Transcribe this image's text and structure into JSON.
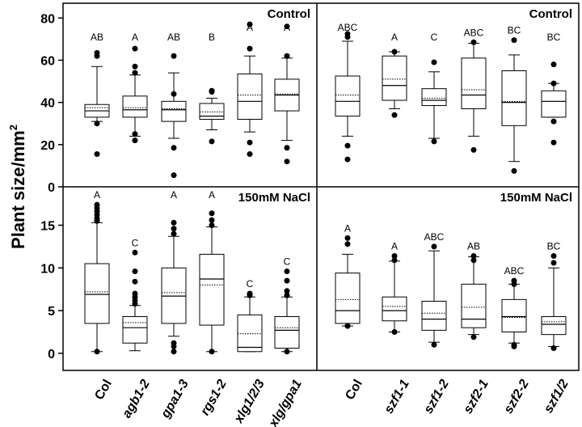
{
  "chart_data": {
    "type": "boxplot",
    "ylabel": "Plant size/mm",
    "ylabel_superscript": "2",
    "panels": [
      {
        "id": "tl",
        "title": "Control",
        "ylim": [
          0,
          87
        ],
        "yticks": [
          "0",
          "20",
          "40",
          "60",
          "80"
        ],
        "categories": [
          "Col",
          "agb1-2",
          "gpa1-3",
          "rgs1-2",
          "xlg1/2/3",
          "xlg/gpa1"
        ],
        "italic": [
          false,
          true,
          true,
          true,
          true,
          true
        ],
        "boxes": [
          {
            "name": "Col",
            "whisker_low": 31,
            "q1": 33,
            "median": 36,
            "mean": 37.5,
            "q3": 39,
            "whisker_high": 57,
            "outliers": [
              15.5,
              30,
              62,
              63.5
            ],
            "sig": "AB"
          },
          {
            "name": "agb1-2",
            "whisker_low": 24,
            "q1": 33,
            "median": 36.5,
            "mean": 37.5,
            "q3": 43,
            "whisker_high": 53,
            "outliers": [
              22,
              25,
              54,
              57,
              65.5
            ],
            "sig": "A"
          },
          {
            "name": "gpa1-3",
            "whisker_low": 23,
            "q1": 31,
            "median": 36.5,
            "mean": 37,
            "q3": 40.5,
            "whisker_high": 54,
            "outliers": [
              5.5,
              18.5,
              44,
              62
            ],
            "sig": "AB"
          },
          {
            "name": "rgs1-2",
            "whisker_low": 27,
            "q1": 32,
            "median": 33.5,
            "mean": 35.5,
            "q3": 39.5,
            "whisker_high": 42,
            "outliers": [
              21.5,
              45,
              45.5
            ],
            "sig": "B"
          },
          {
            "name": "xlg1/2/3",
            "whisker_low": 26,
            "q1": 32,
            "median": 40.5,
            "mean": 43.5,
            "q3": 53.5,
            "whisker_high": 62,
            "outliers": [
              15.5,
              21,
              65.5,
              77
            ],
            "sig": "A"
          },
          {
            "name": "xlg/gpa1",
            "whisker_low": 22,
            "q1": 36,
            "median": 43.5,
            "mean": 44,
            "q3": 51,
            "whisker_high": 61,
            "outliers": [
              12,
              18.5,
              62,
              76
            ],
            "sig": "A"
          }
        ]
      },
      {
        "id": "tr",
        "title": "Control",
        "ylim": [
          0,
          87
        ],
        "categories": [
          "Col",
          "szf1-1",
          "szf1-2",
          "szf2-1",
          "szf2-2",
          "szf1/2"
        ],
        "italic": [
          false,
          true,
          true,
          true,
          true,
          true
        ],
        "boxes": [
          {
            "name": "Col",
            "whisker_low": 24,
            "q1": 33.5,
            "median": 40.5,
            "mean": 43.5,
            "q3": 52.5,
            "whisker_high": 69,
            "outliers": [
              13,
              19.5,
              71,
              72.5
            ],
            "sig": "ABC"
          },
          {
            "name": "szf1-1",
            "whisker_low": 37,
            "q1": 41,
            "median": 48,
            "mean": 51,
            "q3": 62,
            "whisker_high": 64,
            "outliers": [
              34,
              64
            ],
            "sig": "A"
          },
          {
            "name": "szf1-2",
            "whisker_low": 23,
            "q1": 38.5,
            "median": 41,
            "mean": 42,
            "q3": 46.5,
            "whisker_high": 54.5,
            "outliers": [
              21.5,
              59
            ],
            "sig": "C"
          },
          {
            "name": "szf2-1",
            "whisker_low": 24,
            "q1": 37,
            "median": 43.5,
            "mean": 46,
            "q3": 61,
            "whisker_high": 68,
            "outliers": [
              17.5,
              68.5
            ],
            "sig": "ABC"
          },
          {
            "name": "szf2-2",
            "whisker_low": 12,
            "q1": 29,
            "median": 40,
            "mean": 40.5,
            "q3": 55,
            "whisker_high": 62.5,
            "outliers": [
              7.5,
              69.5
            ],
            "sig": "BC"
          },
          {
            "name": "szf1/2",
            "whisker_low": 33,
            "q1": 33,
            "median": 40.5,
            "mean": 40.5,
            "q3": 45.5,
            "whisker_high": 49,
            "outliers": [
              21,
              31,
              49,
              58
            ],
            "sig": "BC"
          }
        ]
      },
      {
        "id": "bl",
        "title": "150mM NaCl",
        "ylim": [
          -2,
          19.5
        ],
        "yticks": [
          "0",
          "5",
          "10",
          "15"
        ],
        "categories": [
          "Col",
          "agb1-2",
          "gpa1-3",
          "rgs1-2",
          "xlg1/2/3",
          "xlg/gpa1"
        ],
        "italic": [
          false,
          true,
          true,
          true,
          true,
          true
        ],
        "boxes": [
          {
            "name": "Col",
            "whisker_low": 0.2,
            "q1": 3.5,
            "median": 6.9,
            "mean": 7.2,
            "q3": 10.5,
            "whisker_high": 15.3,
            "outliers": [
              0.2,
              15.5,
              15.8,
              16.2,
              16.6,
              17.0,
              17.4
            ],
            "sig": "A"
          },
          {
            "name": "agb1-2",
            "whisker_low": 0.3,
            "q1": 1.2,
            "median": 3.0,
            "mean": 3.6,
            "q3": 4.3,
            "whisker_high": 5.6,
            "outliers": [
              5.8,
              6.2,
              6.6,
              7.0,
              8.4,
              9.6,
              11.8
            ],
            "sig": "C"
          },
          {
            "name": "gpa1-3",
            "whisker_low": 2.0,
            "q1": 3.5,
            "median": 6.7,
            "mean": 7.1,
            "q3": 10.0,
            "whisker_high": 13.7,
            "outliers": [
              0.2,
              0.8,
              1.2,
              14.0,
              14.6,
              15.3
            ],
            "sig": "A"
          },
          {
            "name": "rgs1-2",
            "whisker_low": 0.2,
            "q1": 3.3,
            "median": 8.7,
            "mean": 8.0,
            "q3": 11.6,
            "whisker_high": 14.8,
            "outliers": [
              0.2,
              15.0,
              15.6,
              16.4
            ],
            "sig": "A"
          },
          {
            "name": "xlg1/2/3",
            "whisker_low": 0.2,
            "q1": 0.2,
            "median": 0.7,
            "mean": 2.3,
            "q3": 4.5,
            "whisker_high": 6.6,
            "outliers": [
              6.8,
              7.0
            ],
            "sig": "C"
          },
          {
            "name": "xlg/gpa1",
            "whisker_low": 0.2,
            "q1": 0.6,
            "median": 2.7,
            "mean": 3.0,
            "q3": 4.3,
            "whisker_high": 6.6,
            "outliers": [
              0.2,
              6.8,
              7.3,
              8.5,
              9.6
            ],
            "sig": "C"
          }
        ]
      },
      {
        "id": "br",
        "title": "150mM NaCl",
        "ylim": [
          -2,
          19.5
        ],
        "categories": [
          "Col",
          "szf1-1",
          "szf1-2",
          "szf2-1",
          "szf2-2",
          "szf1/2"
        ],
        "italic": [
          false,
          true,
          true,
          true,
          true,
          true
        ],
        "boxes": [
          {
            "name": "Col",
            "whisker_low": 3.2,
            "q1": 3.5,
            "median": 5.0,
            "mean": 6.3,
            "q3": 9.4,
            "whisker_high": 11.6,
            "outliers": [
              3.2,
              12.8,
              13.5
            ],
            "sig": "A"
          },
          {
            "name": "szf1-1",
            "whisker_low": 2.5,
            "q1": 3.8,
            "median": 5.0,
            "mean": 5.5,
            "q3": 6.6,
            "whisker_high": 10.8,
            "outliers": [
              2.5,
              10.9,
              11.4
            ],
            "sig": "A"
          },
          {
            "name": "szf1-2",
            "whisker_low": 1.3,
            "q1": 2.7,
            "median": 4.0,
            "mean": 4.7,
            "q3": 6.1,
            "whisker_high": 12.0,
            "outliers": [
              1.0,
              12.5
            ],
            "sig": "ABC"
          },
          {
            "name": "szf2-1",
            "whisker_low": 2.2,
            "q1": 3.0,
            "median": 4.0,
            "mean": 5.4,
            "q3": 8.1,
            "whisker_high": 11.3,
            "outliers": [
              1.9,
              10.9,
              11.4
            ],
            "sig": "AB"
          },
          {
            "name": "szf2-2",
            "whisker_low": 1.2,
            "q1": 2.5,
            "median": 4.3,
            "mean": 4.2,
            "q3": 6.3,
            "whisker_high": 8.1,
            "outliers": [
              0.8,
              1.0,
              8.1,
              8.5
            ],
            "sig": "ABC"
          },
          {
            "name": "szf1/2",
            "whisker_low": 0.8,
            "q1": 2.2,
            "median": 3.4,
            "mean": 3.7,
            "q3": 4.3,
            "whisker_high": 10.0,
            "outliers": [
              0.6,
              10.6,
              11.4
            ],
            "sig": "BC"
          }
        ]
      }
    ]
  }
}
